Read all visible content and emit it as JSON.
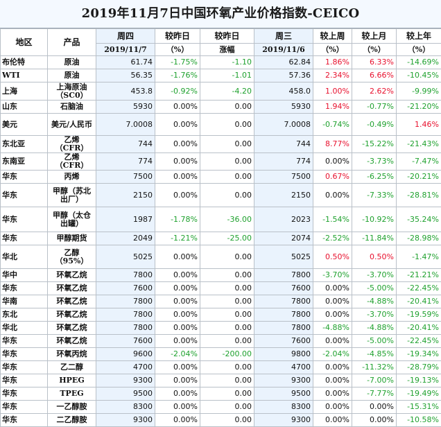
{
  "title": "2019年11月7日中国环氧产业价格指数-CEICO",
  "headers": {
    "region": "地区",
    "product": "产品",
    "thu": "周四",
    "thu_date": "2019/11/7",
    "vs_prev_day": "较昨日",
    "vs_prev_day_unit": "（%）",
    "vs_prev_day_abs": "较昨日",
    "vs_prev_day_abs_unit": "涨幅",
    "wed": "周三",
    "wed_date": "2019/11/6",
    "vs_last_week": "较上周",
    "vs_last_week_unit": "（%）",
    "vs_last_month": "较上月",
    "vs_last_month_unit": "（%）",
    "vs_last_year": "较上年",
    "vs_last_year_unit": "（%）"
  },
  "colors": {
    "up": "#e8102d",
    "down": "#1fa12e",
    "header_bg": "#eaf3fd"
  },
  "rows": [
    {
      "region": "布伦特",
      "product": "原油",
      "thu": "61.74",
      "d_pct": "-1.75%",
      "d_abs": "-1.10",
      "wed": "62.84",
      "w": "1.86%",
      "m": "6.33%",
      "y": "-14.69%"
    },
    {
      "region": "WTI",
      "product": "原油",
      "thu": "56.35",
      "d_pct": "-1.76%",
      "d_abs": "-1.01",
      "wed": "57.36",
      "w": "2.34%",
      "m": "6.66%",
      "y": "-10.45%"
    },
    {
      "region": "上海",
      "product": "上海原油（SC0）",
      "thu": "453.8",
      "d_pct": "-0.92%",
      "d_abs": "-4.20",
      "wed": "458.0",
      "w": "1.00%",
      "m": "2.62%",
      "y": "-9.99%"
    },
    {
      "region": "山东",
      "product": "石脑油",
      "thu": "5930",
      "d_pct": "0.00%",
      "d_abs": "0.00",
      "wed": "5930",
      "w": "1.94%",
      "m": "-0.77%",
      "y": "-21.20%"
    },
    {
      "region": "美元",
      "product": "美元/人民币",
      "thu": "7.0008",
      "d_pct": "0.00%",
      "d_abs": "0.00",
      "wed": "7.0008",
      "w": "-0.74%",
      "m": "-0.49%",
      "y": "1.46%"
    },
    {
      "region": "东北亚",
      "product": "乙烯（CFR）",
      "thu": "744",
      "d_pct": "0.00%",
      "d_abs": "0.00",
      "wed": "744",
      "w": "8.77%",
      "m": "-15.22%",
      "y": "-21.43%"
    },
    {
      "region": "东南亚",
      "product": "乙烯（CFR）",
      "thu": "774",
      "d_pct": "0.00%",
      "d_abs": "0.00",
      "wed": "774",
      "w": "0.00%",
      "m": "-3.73%",
      "y": "-7.47%"
    },
    {
      "region": "华东",
      "product": "丙烯",
      "thu": "7500",
      "d_pct": "0.00%",
      "d_abs": "0.00",
      "wed": "7500",
      "w": "0.67%",
      "m": "-6.25%",
      "y": "-20.21%"
    },
    {
      "region": "华东",
      "product": "甲醇（苏北出厂）",
      "thu": "2150",
      "d_pct": "0.00%",
      "d_abs": "0.00",
      "wed": "2150",
      "w": "0.00%",
      "m": "-7.33%",
      "y": "-28.81%"
    },
    {
      "region": "华东",
      "product": "甲醇（太仓出罐）",
      "thu": "1987",
      "d_pct": "-1.78%",
      "d_abs": "-36.00",
      "wed": "2023",
      "w": "-1.54%",
      "m": "-10.92%",
      "y": "-35.24%"
    },
    {
      "region": "华东",
      "product": "甲醇期货",
      "thu": "2049",
      "d_pct": "-1.21%",
      "d_abs": "-25.00",
      "wed": "2074",
      "w": "-2.52%",
      "m": "-11.84%",
      "y": "-28.98%"
    },
    {
      "region": "华北",
      "product": "乙醇（95%）",
      "thu": "5025",
      "d_pct": "0.00%",
      "d_abs": "0.00",
      "wed": "5025",
      "w": "0.50%",
      "m": "0.50%",
      "y": "-1.47%"
    },
    {
      "region": "华中",
      "product": "环氧乙烷",
      "thu": "7800",
      "d_pct": "0.00%",
      "d_abs": "0.00",
      "wed": "7800",
      "w": "-3.70%",
      "m": "-3.70%",
      "y": "-21.21%"
    },
    {
      "region": "华东",
      "product": "环氧乙烷",
      "thu": "7600",
      "d_pct": "0.00%",
      "d_abs": "0.00",
      "wed": "7600",
      "w": "0.00%",
      "m": "-5.00%",
      "y": "-22.45%"
    },
    {
      "region": "华南",
      "product": "环氧乙烷",
      "thu": "7800",
      "d_pct": "0.00%",
      "d_abs": "0.00",
      "wed": "7800",
      "w": "0.00%",
      "m": "-4.88%",
      "y": "-20.41%"
    },
    {
      "region": "东北",
      "product": "环氧乙烷",
      "thu": "7800",
      "d_pct": "0.00%",
      "d_abs": "0.00",
      "wed": "7800",
      "w": "0.00%",
      "m": "-3.70%",
      "y": "-19.59%"
    },
    {
      "region": "华北",
      "product": "环氧乙烷",
      "thu": "7800",
      "d_pct": "0.00%",
      "d_abs": "0.00",
      "wed": "7800",
      "w": "-4.88%",
      "m": "-4.88%",
      "y": "-20.41%"
    },
    {
      "region": "华东",
      "product": "环氧乙烷",
      "thu": "7600",
      "d_pct": "0.00%",
      "d_abs": "0.00",
      "wed": "7600",
      "w": "0.00%",
      "m": "-5.00%",
      "y": "-22.45%"
    },
    {
      "region": "华东",
      "product": "环氧丙烷",
      "thu": "9600",
      "d_pct": "-2.04%",
      "d_abs": "-200.00",
      "wed": "9800",
      "w": "-2.04%",
      "m": "-4.85%",
      "y": "-19.34%"
    },
    {
      "region": "华东",
      "product": "乙二醇",
      "thu": "4700",
      "d_pct": "0.00%",
      "d_abs": "0.00",
      "wed": "4700",
      "w": "0.00%",
      "m": "-11.32%",
      "y": "-28.79%"
    },
    {
      "region": "华东",
      "product": "HPEG",
      "thu": "9300",
      "d_pct": "0.00%",
      "d_abs": "0.00",
      "wed": "9300",
      "w": "0.00%",
      "m": "-7.00%",
      "y": "-19.13%"
    },
    {
      "region": "华东",
      "product": "TPEG",
      "thu": "9500",
      "d_pct": "0.00%",
      "d_abs": "0.00",
      "wed": "9500",
      "w": "0.00%",
      "m": "-7.77%",
      "y": "-19.49%"
    },
    {
      "region": "华东",
      "product": "一乙醇胺",
      "thu": "8300",
      "d_pct": "0.00%",
      "d_abs": "0.00",
      "wed": "8300",
      "w": "0.00%",
      "m": "0.00%",
      "y": "-15.31%"
    },
    {
      "region": "华东",
      "product": "二乙醇胺",
      "thu": "9300",
      "d_pct": "0.00%",
      "d_abs": "0.00",
      "wed": "9300",
      "w": "0.00%",
      "m": "0.00%",
      "y": "-10.58%"
    }
  ]
}
